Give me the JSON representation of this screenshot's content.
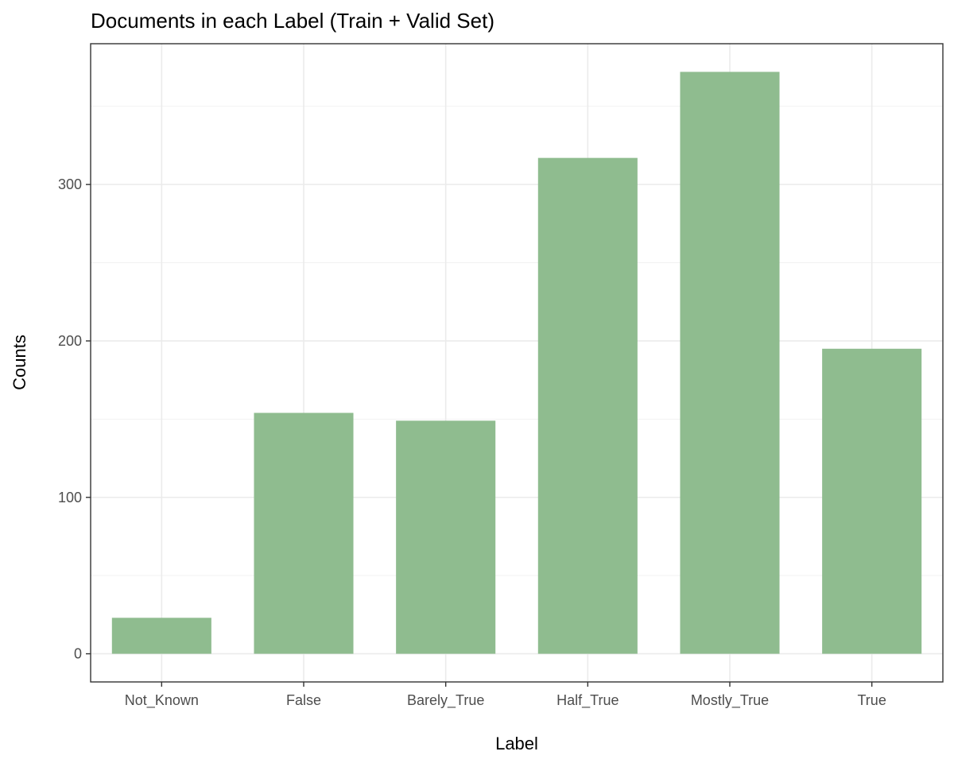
{
  "chart_data": {
    "type": "bar",
    "title": "Documents in each Label (Train + Valid Set)",
    "xlabel": "Label",
    "ylabel": "Counts",
    "categories": [
      "Not_Known",
      "False",
      "Barely_True",
      "Half_True",
      "Mostly_True",
      "True"
    ],
    "values": [
      23,
      154,
      149,
      317,
      372,
      195
    ],
    "ylim": [
      -18,
      390
    ],
    "yticks": [
      0,
      100,
      200,
      300
    ],
    "yticks_labels": [
      "0",
      "100",
      "200",
      "300"
    ],
    "grid": true,
    "legend": "none",
    "bar_color": "#8fbc8f"
  }
}
